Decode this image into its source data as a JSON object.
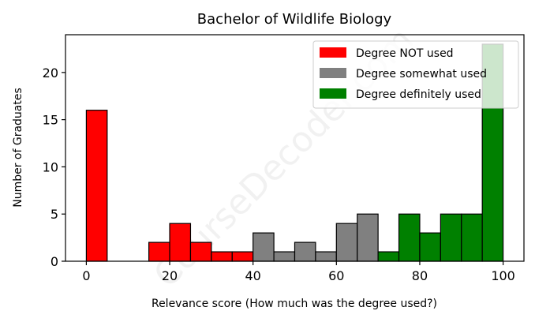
{
  "chart_data": {
    "type": "bar",
    "title": "Bachelor of Wildlife Biology",
    "xlabel": "Relevance score (How much was the degree used?)",
    "ylabel": "Number of Graduates",
    "xlim": [
      -5,
      105
    ],
    "ylim": [
      0,
      24
    ],
    "xticks": [
      0,
      20,
      40,
      60,
      80,
      100
    ],
    "yticks": [
      0,
      5,
      10,
      15,
      20
    ],
    "bin_width": 5,
    "bins": [
      {
        "x": 0,
        "value": 16,
        "group": "not"
      },
      {
        "x": 5,
        "value": 0,
        "group": "not"
      },
      {
        "x": 10,
        "value": 0,
        "group": "not"
      },
      {
        "x": 15,
        "value": 2,
        "group": "not"
      },
      {
        "x": 20,
        "value": 4,
        "group": "not"
      },
      {
        "x": 25,
        "value": 2,
        "group": "not"
      },
      {
        "x": 30,
        "value": 1,
        "group": "not"
      },
      {
        "x": 35,
        "value": 1,
        "group": "not"
      },
      {
        "x": 40,
        "value": 3,
        "group": "somewhat"
      },
      {
        "x": 45,
        "value": 1,
        "group": "somewhat"
      },
      {
        "x": 50,
        "value": 2,
        "group": "somewhat"
      },
      {
        "x": 55,
        "value": 1,
        "group": "somewhat"
      },
      {
        "x": 60,
        "value": 4,
        "group": "somewhat"
      },
      {
        "x": 65,
        "value": 5,
        "group": "somewhat"
      },
      {
        "x": 70,
        "value": 1,
        "group": "definitely"
      },
      {
        "x": 75,
        "value": 5,
        "group": "definitely"
      },
      {
        "x": 80,
        "value": 3,
        "group": "definitely"
      },
      {
        "x": 85,
        "value": 5,
        "group": "definitely"
      },
      {
        "x": 90,
        "value": 5,
        "group": "definitely"
      },
      {
        "x": 95,
        "value": 23,
        "group": "definitely"
      }
    ],
    "series": [
      {
        "name": "Degree NOT used",
        "key": "not",
        "color": "#ff0000"
      },
      {
        "name": "Degree somewhat used",
        "key": "somewhat",
        "color": "#808080"
      },
      {
        "name": "Degree definitely used",
        "key": "definitely",
        "color": "#008000"
      }
    ],
    "legend_position": "top-right",
    "grid": false
  },
  "watermark": "CourseDecoder.com"
}
